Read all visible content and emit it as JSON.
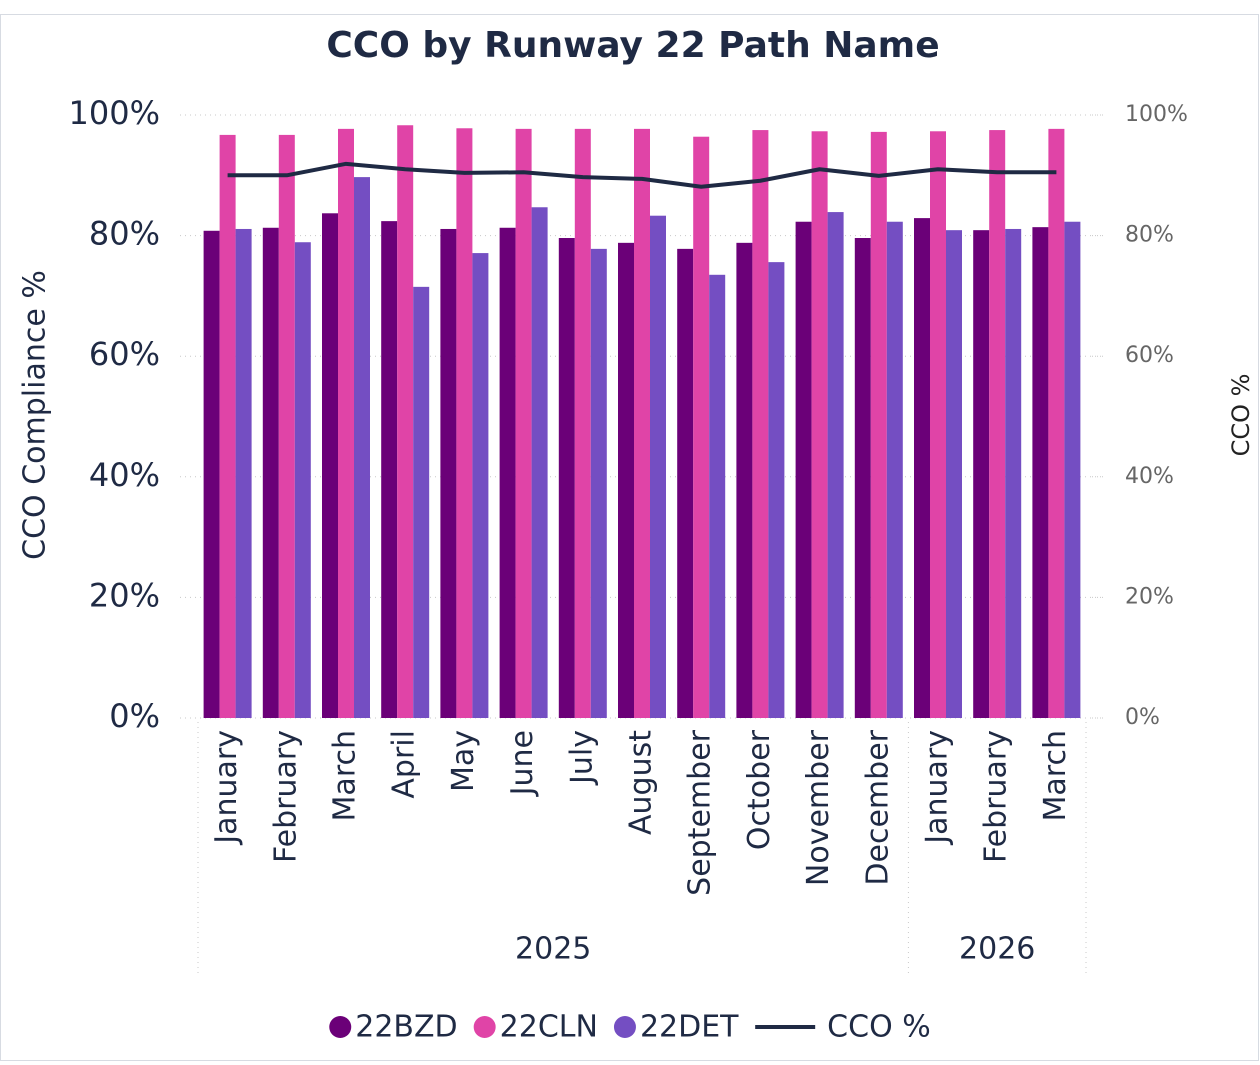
{
  "chart_data": {
    "type": "bar",
    "title": "CCO by Runway 22 Path Name",
    "y_label": "CCO Compliance %",
    "y2_label": "CCO %",
    "categories": [
      "January",
      "February",
      "March",
      "April",
      "May",
      "June",
      "July",
      "August",
      "September",
      "October",
      "November",
      "December",
      "January",
      "February",
      "March"
    ],
    "groups": [
      {
        "label": "2025",
        "count": 12
      },
      {
        "label": "2026",
        "count": 3
      }
    ],
    "series": [
      {
        "name": "22BZD",
        "type": "bar",
        "color": "#6b0078",
        "values": [
          80.8,
          81.3,
          83.7,
          82.4,
          81.1,
          81.3,
          79.6,
          78.8,
          77.8,
          78.8,
          82.3,
          79.6,
          82.9,
          80.9,
          81.4
        ]
      },
      {
        "name": "22CLN",
        "type": "bar",
        "color": "#e044a7",
        "values": [
          96.7,
          96.7,
          97.7,
          98.3,
          97.8,
          97.7,
          97.7,
          97.7,
          96.4,
          97.5,
          97.3,
          97.2,
          97.3,
          97.5,
          97.7
        ]
      },
      {
        "name": "22DET",
        "type": "bar",
        "color": "#744ec2",
        "values": [
          81.1,
          78.9,
          89.7,
          71.5,
          77.1,
          84.7,
          77.8,
          83.3,
          73.5,
          75.6,
          83.9,
          82.3,
          80.9,
          81.1,
          82.3
        ]
      },
      {
        "name": "CCO %",
        "type": "line",
        "axis": "y2",
        "color": "#1f2a44",
        "values": [
          90.0,
          90.0,
          91.9,
          91.0,
          90.4,
          90.5,
          89.7,
          89.4,
          88.1,
          89.1,
          91.0,
          89.9,
          91.0,
          90.5,
          90.5
        ]
      }
    ],
    "ylim": [
      0,
      100
    ],
    "yticks": [
      {
        "value": 0,
        "label": "0%"
      },
      {
        "value": 20,
        "label": "20%"
      },
      {
        "value": 40,
        "label": "40%"
      },
      {
        "value": 60,
        "label": "60%"
      },
      {
        "value": 80,
        "label": "80%"
      },
      {
        "value": 100,
        "label": "100%"
      }
    ],
    "y2lim": [
      0,
      100
    ],
    "y2ticks": [
      {
        "value": 0,
        "label": "0%"
      },
      {
        "value": 20,
        "label": "20%"
      },
      {
        "value": 40,
        "label": "40%"
      },
      {
        "value": 60,
        "label": "60%"
      },
      {
        "value": 80,
        "label": "80%"
      },
      {
        "value": 100,
        "label": "100%"
      }
    ],
    "grid": true,
    "legend": "bottom"
  }
}
